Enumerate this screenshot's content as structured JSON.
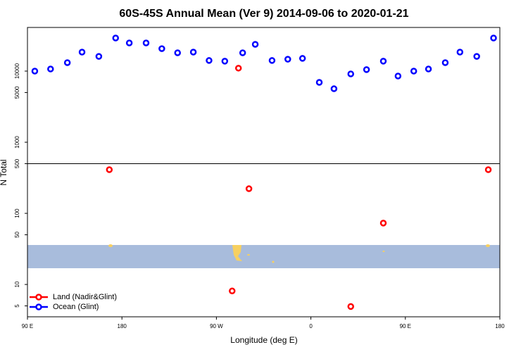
{
  "chart_data": {
    "type": "scatter",
    "title": "60S-45S Annual Mean (Ver 9)   2014-09-06 to 2020-01-21",
    "x_label": "Longitude (deg E)",
    "y_label": "N Total",
    "xlim": [
      90,
      540
    ],
    "xticks": [
      {
        "value": 90,
        "label": "90 E"
      },
      180,
      {
        "value": 270,
        "label": "90 W"
      },
      {
        "value": 360,
        "label": "0"
      },
      {
        "value": 450,
        "label": "90 E"
      },
      {
        "value": 540,
        "label": "180"
      }
    ],
    "ylim": [
      3.51,
      41100
    ],
    "log_y": true,
    "yticks": [
      5,
      10,
      50,
      100,
      500,
      1000,
      5000,
      10000
    ],
    "reference_line": 500,
    "legend": "bottom-left",
    "series": [
      {
        "name": "Land (Nadir&Glint)",
        "color": "#ff0000",
        "x": [
          291,
          168,
          301,
          429,
          529,
          285,
          398
        ],
        "values": [
          11000,
          411,
          222,
          73,
          411,
          8.1,
          4.9
        ]
      },
      {
        "name": "Ocean (Glint)",
        "color": "#0000ff",
        "x": [
          97,
          112,
          128,
          142,
          158,
          174,
          187,
          203,
          218,
          233,
          248,
          263,
          278,
          295,
          307,
          323,
          338,
          352,
          368,
          382,
          398,
          413,
          429,
          443,
          458,
          472,
          488,
          502,
          518,
          534
        ],
        "values": [
          10000,
          10700,
          13150,
          18500,
          16100,
          29200,
          24900,
          24900,
          20700,
          18100,
          18500,
          14100,
          13800,
          18100,
          23800,
          14100,
          14700,
          15100,
          6940,
          5650,
          9130,
          10500,
          13800,
          8530,
          10000,
          10700,
          13150,
          18500,
          16100,
          29200
        ]
      }
    ]
  }
}
